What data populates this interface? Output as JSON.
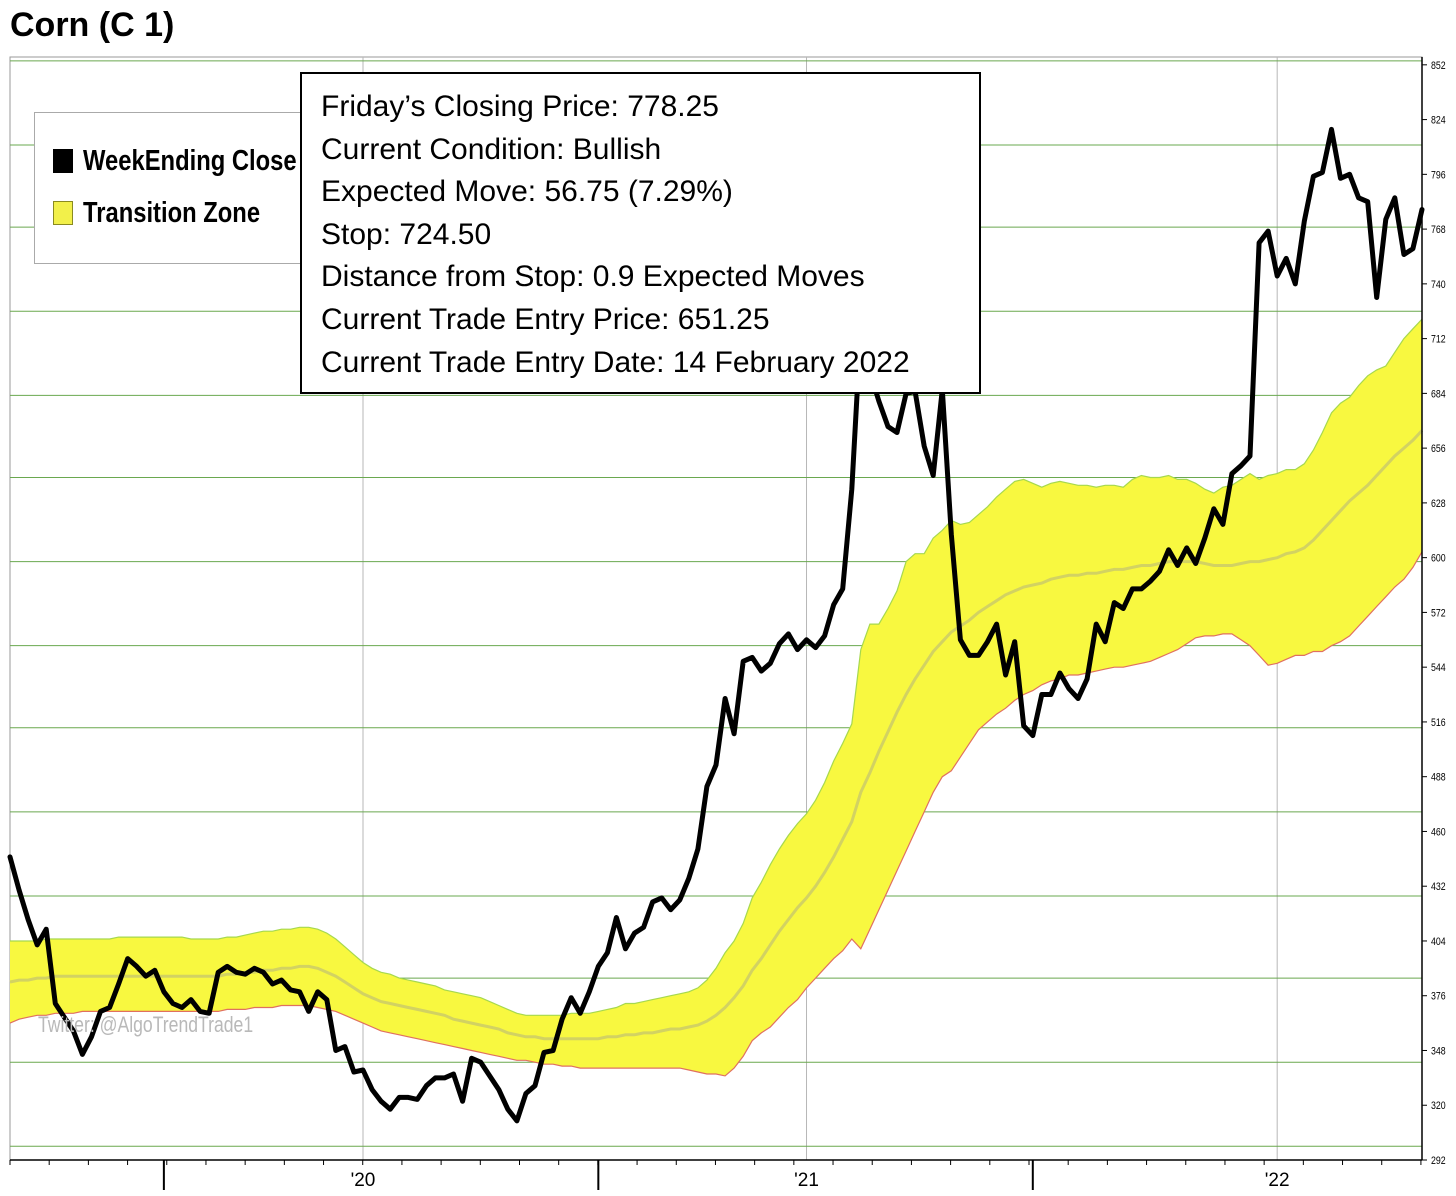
{
  "title": "Corn (C 1)",
  "legend": {
    "items": [
      {
        "label": "WeekEnding Close",
        "color": "#000000"
      },
      {
        "label": "Transition Zone",
        "color": "#f2f04a"
      }
    ]
  },
  "info_box": {
    "lines": [
      "Friday’s Closing Price: 778.25",
      "Current Condition: Bullish",
      "Expected Move: 56.75 (7.29%)",
      "Stop: 724.50",
      "Distance from Stop: 0.9 Expected Moves",
      "Current Trade Entry Price: 651.25",
      "Current Trade Entry Date: 14 February 2022"
    ]
  },
  "watermark": "Twitter: @AlgoTrendTrade1",
  "colors": {
    "close_line": "#000000",
    "zone_fill": "#f8f840",
    "zone_upper_edge": "#a6d84e",
    "zone_lower_edge": "#e07060",
    "zone_mid": "#d2d262",
    "grid_horizontal": "#6aa84f",
    "grid_vertical": "#b7b7b7"
  },
  "chart_data": {
    "type": "line",
    "title": "Corn (C 1)",
    "x_axis": {
      "ticks": [
        "'20",
        "'21",
        "'22"
      ],
      "tick_x_index": [
        39,
        88,
        140
      ]
    },
    "y_axis": {
      "position": "right",
      "ylim": [
        292,
        856
      ],
      "ticks": [
        292,
        320,
        348,
        376,
        404,
        432,
        460,
        488,
        516,
        544,
        572,
        600,
        628,
        656,
        684,
        712,
        740,
        768,
        796,
        824,
        852
      ],
      "grid_lines": [
        299,
        342,
        385,
        427,
        470,
        513,
        555,
        598,
        641,
        683,
        726,
        769,
        811,
        854
      ]
    },
    "series": [
      {
        "name": "WeekEnding Close",
        "values": [
          447,
          430,
          415,
          402,
          410,
          372,
          365,
          358,
          346,
          355,
          368,
          370,
          382,
          395,
          391,
          386,
          389,
          378,
          372,
          370,
          374,
          368,
          367,
          388,
          391,
          388,
          387,
          390,
          388,
          382,
          384,
          379,
          378,
          368,
          378,
          374,
          348,
          350,
          337,
          338,
          328,
          322,
          318,
          324,
          324,
          323,
          330,
          334,
          334,
          336,
          322,
          344,
          342,
          335,
          328,
          318,
          312,
          326,
          330,
          347,
          348,
          364,
          375,
          367,
          378,
          391,
          398,
          416,
          400,
          408,
          411,
          424,
          426,
          420,
          425,
          436,
          451,
          483,
          494,
          528,
          510,
          547,
          549,
          542,
          546,
          556,
          561,
          553,
          558,
          554,
          560,
          576,
          584,
          635,
          718,
          695,
          680,
          667,
          664,
          684,
          685,
          657,
          642,
          686,
          612,
          558,
          550,
          550,
          557,
          566,
          540,
          557,
          514,
          509,
          530,
          530,
          541,
          533,
          528,
          538,
          566,
          557,
          577,
          574,
          584,
          584,
          588,
          593,
          604,
          596,
          605,
          597,
          610,
          625,
          617,
          643,
          647,
          652,
          761,
          767,
          744,
          753,
          740,
          772,
          795,
          797,
          819,
          794,
          796,
          784,
          782,
          733,
          773,
          784,
          755,
          758,
          778
        ]
      },
      {
        "name": "Transition Zone upper",
        "values": [
          404,
          404,
          404,
          404,
          405,
          405,
          405,
          405,
          405,
          405,
          405,
          405,
          406,
          406,
          406,
          406,
          406,
          406,
          406,
          406,
          405,
          405,
          405,
          405,
          406,
          406,
          407,
          408,
          409,
          409,
          410,
          410,
          411,
          411,
          410,
          408,
          405,
          401,
          397,
          393,
          390,
          388,
          387,
          385,
          384,
          383,
          382,
          381,
          379,
          378,
          377,
          376,
          375,
          373,
          371,
          369,
          367,
          366,
          366,
          366,
          366,
          366,
          367,
          367,
          367,
          368,
          369,
          370,
          372,
          372,
          373,
          374,
          375,
          376,
          377,
          378,
          380,
          384,
          390,
          398,
          404,
          413,
          426,
          434,
          443,
          451,
          458,
          464,
          469,
          476,
          485,
          496,
          505,
          515,
          553,
          566,
          566,
          574,
          583,
          598,
          602,
          602,
          610,
          614,
          619,
          617,
          618,
          622,
          626,
          631,
          635,
          639,
          640,
          638,
          636,
          638,
          639,
          638,
          637,
          637,
          636,
          637,
          637,
          636,
          640,
          642,
          641,
          641,
          642,
          640,
          640,
          638,
          635,
          633,
          636,
          637,
          640,
          643,
          640,
          642,
          643,
          645,
          645,
          648,
          655,
          664,
          674,
          679,
          682,
          688,
          693,
          696,
          698,
          705,
          712,
          717,
          722
        ]
      },
      {
        "name": "Transition Zone mid",
        "values": [
          383,
          384,
          384,
          385,
          385,
          386,
          386,
          386,
          386,
          386,
          386,
          386,
          386,
          386,
          386,
          386,
          386,
          386,
          386,
          386,
          386,
          386,
          386,
          386,
          387,
          387,
          388,
          388,
          389,
          389,
          390,
          390,
          391,
          391,
          390,
          388,
          386,
          383,
          380,
          377,
          375,
          373,
          372,
          371,
          370,
          369,
          368,
          367,
          366,
          364,
          363,
          362,
          361,
          360,
          359,
          357,
          356,
          355,
          355,
          354,
          354,
          354,
          354,
          354,
          354,
          354,
          355,
          355,
          356,
          356,
          357,
          357,
          358,
          359,
          359,
          360,
          361,
          363,
          366,
          370,
          375,
          381,
          389,
          395,
          402,
          409,
          415,
          421,
          426,
          432,
          439,
          447,
          456,
          465,
          480,
          490,
          501,
          511,
          521,
          530,
          538,
          545,
          552,
          557,
          562,
          565,
          568,
          572,
          575,
          578,
          581,
          583,
          585,
          586,
          587,
          589,
          590,
          591,
          591,
          592,
          592,
          593,
          594,
          594,
          595,
          596,
          596,
          597,
          598,
          598,
          598,
          598,
          597,
          596,
          596,
          596,
          597,
          598,
          598,
          599,
          600,
          602,
          603,
          605,
          609,
          614,
          619,
          624,
          629,
          633,
          637,
          642,
          647,
          652,
          656,
          660,
          665
        ]
      },
      {
        "name": "Transition Zone lower",
        "values": [
          362,
          364,
          365,
          366,
          366,
          367,
          367,
          367,
          368,
          368,
          368,
          368,
          368,
          368,
          368,
          368,
          368,
          368,
          368,
          368,
          368,
          368,
          368,
          368,
          369,
          369,
          369,
          370,
          370,
          370,
          371,
          371,
          371,
          371,
          370,
          369,
          368,
          366,
          364,
          362,
          360,
          358,
          357,
          356,
          355,
          354,
          353,
          352,
          351,
          350,
          349,
          348,
          347,
          346,
          345,
          344,
          343,
          343,
          342,
          341,
          341,
          340,
          340,
          339,
          339,
          339,
          339,
          339,
          339,
          339,
          339,
          339,
          339,
          339,
          339,
          338,
          337,
          336,
          336,
          335,
          339,
          345,
          353,
          357,
          360,
          365,
          370,
          374,
          380,
          385,
          390,
          395,
          399,
          405,
          400,
          410,
          420,
          430,
          440,
          450,
          460,
          470,
          480,
          488,
          491,
          498,
          505,
          512,
          516,
          520,
          523,
          527,
          530,
          532,
          535,
          537,
          538,
          540,
          540,
          541,
          542,
          543,
          544,
          544,
          545,
          546,
          547,
          549,
          551,
          553,
          556,
          559,
          560,
          560,
          561,
          561,
          558,
          555,
          550,
          545,
          546,
          548,
          550,
          550,
          552,
          552,
          555,
          557,
          560,
          565,
          570,
          575,
          580,
          585,
          589,
          595,
          603
        ]
      }
    ]
  }
}
